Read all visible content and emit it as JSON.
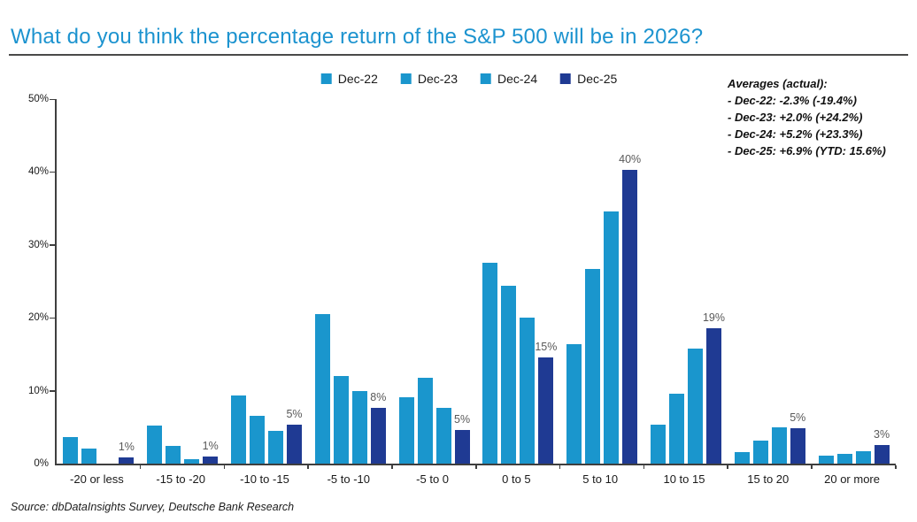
{
  "page": {
    "title": "What do you think the percentage return of the S&P 500 will be in 2026?",
    "source": "Source: dbDataInsights Survey, Deutsche Bank Research"
  },
  "colors": {
    "title_blue": "#1c93cf",
    "light_blue": "#1a96cd",
    "navy": "#1f3a93",
    "rule_gray": "#4a4a49",
    "axis_gray": "#3e3e3e",
    "data_label_gray": "#595959"
  },
  "annotation": {
    "title": "Averages (actual):",
    "lines": [
      "- Dec-22: -2.3% (-19.4%)",
      "- Dec-23: +2.0% (+24.2%)",
      "- Dec-24: +5.2% (+23.3%)",
      "- Dec-25: +6.9% (YTD: 15.6%)"
    ]
  },
  "chart_data": {
    "type": "bar",
    "title": "What do you think the percentage return of the S&P 500 will be in 2026?",
    "categories": [
      "-20 or less",
      "-15 to -20",
      "-10 to -15",
      "-5 to -10",
      "-5 to 0",
      "0 to 5",
      "5 to 10",
      "10 to 15",
      "15 to 20",
      "20 or more"
    ],
    "series": [
      {
        "name": "Dec-22",
        "color": "#1a96cd",
        "values": [
          3.7,
          5.2,
          9.3,
          20.5,
          9.1,
          27.6,
          16.4,
          5.4,
          1.6,
          1.1
        ]
      },
      {
        "name": "Dec-23",
        "color": "#1a96cd",
        "values": [
          2.1,
          2.4,
          6.5,
          12.0,
          11.8,
          24.4,
          26.7,
          9.6,
          3.2,
          1.3
        ]
      },
      {
        "name": "Dec-24",
        "color": "#1a96cd",
        "values": [
          0,
          0.6,
          4.5,
          9.9,
          7.6,
          20.0,
          34.6,
          15.8,
          5.0,
          1.7
        ]
      },
      {
        "name": "Dec-25",
        "color": "#1f3a93",
        "values": [
          0.8,
          1.0,
          5.3,
          7.7,
          4.6,
          14.6,
          40.3,
          18.6,
          4.9,
          2.5
        ],
        "labels": [
          "1%",
          "1%",
          "5%",
          "8%",
          "5%",
          "15%",
          "40%",
          "19%",
          "5%",
          "3%"
        ]
      }
    ],
    "xlabel": "",
    "ylabel": "",
    "ylim": [
      0,
      50
    ],
    "yticks": [
      "0%",
      "10%",
      "20%",
      "30%",
      "40%",
      "50%"
    ],
    "legend_position": "top-center",
    "grid": false
  }
}
